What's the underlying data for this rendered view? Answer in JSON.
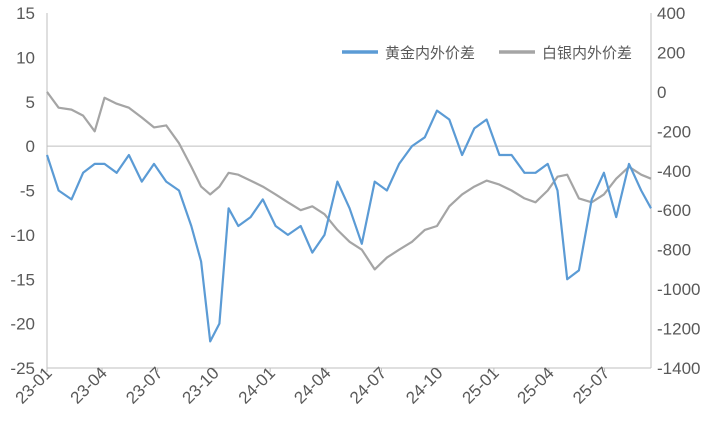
{
  "chart_data": {
    "type": "line",
    "title": "",
    "xlabel": "",
    "ylabel": "",
    "y2label": "",
    "x_range": [
      "2023-01-01",
      "2025-09-15"
    ],
    "x_ticks": [
      "23-01",
      "23-04",
      "23-07",
      "23-10",
      "24-01",
      "24-04",
      "24-07",
      "24-10",
      "25-01",
      "25-04",
      "25-07"
    ],
    "ylim": [
      -25,
      15
    ],
    "yticks": [
      15,
      10,
      5,
      0,
      -5,
      -10,
      -15,
      -20,
      -25
    ],
    "y2lim": [
      -1400,
      400
    ],
    "y2ticks": [
      400,
      200,
      0,
      -200,
      -400,
      -600,
      -800,
      -1000,
      -1200,
      -1400
    ],
    "grid": false,
    "legend_position": "top-right",
    "series": [
      {
        "name": "黄金内外价差",
        "axis": "left",
        "color": "#5B9BD5",
        "x": [
          "2023-01-01",
          "2023-01-20",
          "2023-02-10",
          "2023-03-01",
          "2023-03-20",
          "2023-04-05",
          "2023-04-25",
          "2023-05-15",
          "2023-06-05",
          "2023-06-25",
          "2023-07-15",
          "2023-08-05",
          "2023-08-25",
          "2023-09-10",
          "2023-09-25",
          "2023-10-10",
          "2023-10-25",
          "2023-11-10",
          "2023-11-30",
          "2023-12-20",
          "2024-01-10",
          "2024-01-30",
          "2024-02-20",
          "2024-03-10",
          "2024-03-30",
          "2024-04-20",
          "2024-05-10",
          "2024-05-30",
          "2024-06-20",
          "2024-07-10",
          "2024-07-30",
          "2024-08-20",
          "2024-09-10",
          "2024-09-30",
          "2024-10-20",
          "2024-11-10",
          "2024-11-30",
          "2024-12-20",
          "2025-01-10",
          "2025-01-30",
          "2025-02-20",
          "2025-03-10",
          "2025-03-30",
          "2025-04-15",
          "2025-05-01",
          "2025-05-20",
          "2025-06-10",
          "2025-06-30",
          "2025-07-20",
          "2025-08-10",
          "2025-08-30",
          "2025-09-15"
        ],
        "values": [
          -1,
          -5,
          -6,
          -3,
          -2,
          -2,
          -3,
          -1,
          -4,
          -2,
          -4,
          -5,
          -9,
          -13,
          -22,
          -20,
          -7,
          -9,
          -8,
          -6,
          -9,
          -10,
          -9,
          -12,
          -10,
          -4,
          -7,
          -11,
          -4,
          -5,
          -2,
          0,
          1,
          4,
          3,
          -1,
          2,
          3,
          -1,
          -1,
          -3,
          -3,
          -2,
          -5,
          -15,
          -14,
          -6,
          -3,
          -8,
          -2,
          -5,
          -7
        ]
      },
      {
        "name": "白银内外价差",
        "axis": "right",
        "color": "#A5A5A5",
        "x": [
          "2023-01-01",
          "2023-01-20",
          "2023-02-10",
          "2023-03-01",
          "2023-03-20",
          "2023-04-05",
          "2023-04-25",
          "2023-05-15",
          "2023-06-05",
          "2023-06-25",
          "2023-07-15",
          "2023-08-05",
          "2023-08-25",
          "2023-09-10",
          "2023-09-25",
          "2023-10-10",
          "2023-10-25",
          "2023-11-10",
          "2023-11-30",
          "2023-12-20",
          "2024-01-10",
          "2024-01-30",
          "2024-02-20",
          "2024-03-10",
          "2024-03-30",
          "2024-04-20",
          "2024-05-10",
          "2024-05-30",
          "2024-06-20",
          "2024-07-10",
          "2024-07-30",
          "2024-08-20",
          "2024-09-10",
          "2024-09-30",
          "2024-10-20",
          "2024-11-10",
          "2024-11-30",
          "2024-12-20",
          "2025-01-10",
          "2025-01-30",
          "2025-02-20",
          "2025-03-10",
          "2025-03-30",
          "2025-04-15",
          "2025-05-01",
          "2025-05-20",
          "2025-06-10",
          "2025-06-30",
          "2025-07-20",
          "2025-08-10",
          "2025-08-30",
          "2025-09-15"
        ],
        "values": [
          0,
          -80,
          -90,
          -120,
          -200,
          -30,
          -60,
          -80,
          -130,
          -180,
          -170,
          -260,
          -380,
          -480,
          -520,
          -480,
          -410,
          -420,
          -450,
          -480,
          -520,
          -560,
          -600,
          -580,
          -620,
          -700,
          -760,
          -800,
          -900,
          -840,
          -800,
          -760,
          -700,
          -680,
          -580,
          -520,
          -480,
          -450,
          -470,
          -500,
          -540,
          -560,
          -500,
          -430,
          -420,
          -540,
          -560,
          -520,
          -440,
          -380,
          -420,
          -440
        ]
      }
    ]
  }
}
